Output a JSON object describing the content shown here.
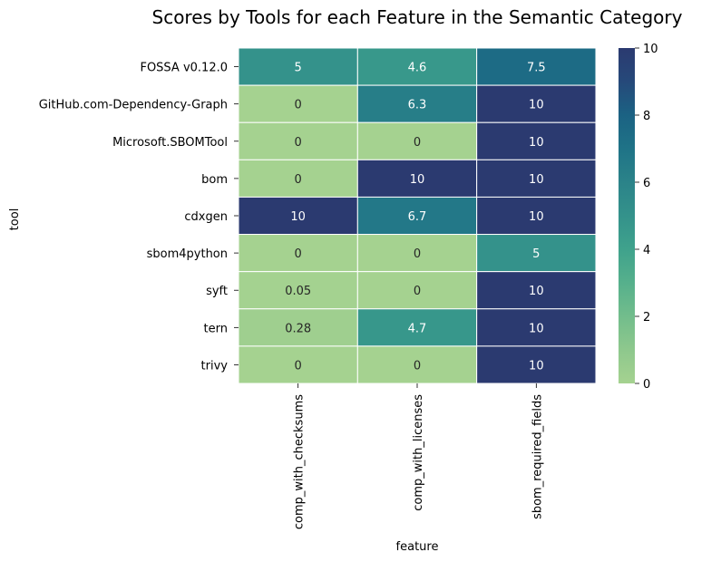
{
  "chart_data": {
    "type": "heatmap",
    "title": "Scores by Tools for each Feature in the Semantic Category",
    "xlabel": "feature",
    "ylabel": "tool",
    "columns": [
      "comp_with_checksums",
      "comp_with_licenses",
      "sbom_required_fields"
    ],
    "rows": [
      "FOSSA v0.12.0",
      "GitHub.com-Dependency-Graph",
      "Microsoft.SBOMTool",
      "bom",
      "cdxgen",
      "sbom4python",
      "syft",
      "tern",
      "trivy"
    ],
    "values": [
      [
        5,
        4.6,
        7.5
      ],
      [
        0,
        6.3,
        10
      ],
      [
        0,
        0,
        10
      ],
      [
        0,
        10,
        10
      ],
      [
        10,
        6.7,
        10
      ],
      [
        0,
        0,
        5
      ],
      [
        0.05,
        0,
        10
      ],
      [
        0.28,
        4.7,
        10
      ],
      [
        0,
        0,
        10
      ]
    ],
    "labels": [
      [
        "5",
        "4.6",
        "7.5"
      ],
      [
        "0",
        "6.3",
        "10"
      ],
      [
        "0",
        "0",
        "10"
      ],
      [
        "0",
        "10",
        "10"
      ],
      [
        "10",
        "6.7",
        "10"
      ],
      [
        "0",
        "0",
        "5"
      ],
      [
        "0.05",
        "0",
        "10"
      ],
      [
        "0.28",
        "4.7",
        "10"
      ],
      [
        "0",
        "0",
        "10"
      ]
    ],
    "colorbar": {
      "range": [
        0,
        10
      ],
      "ticks": [
        "0",
        "2",
        "4",
        "6",
        "8",
        "10"
      ],
      "colormap": "crest",
      "colors": [
        "#a5d290",
        "#2b3a70"
      ]
    }
  }
}
